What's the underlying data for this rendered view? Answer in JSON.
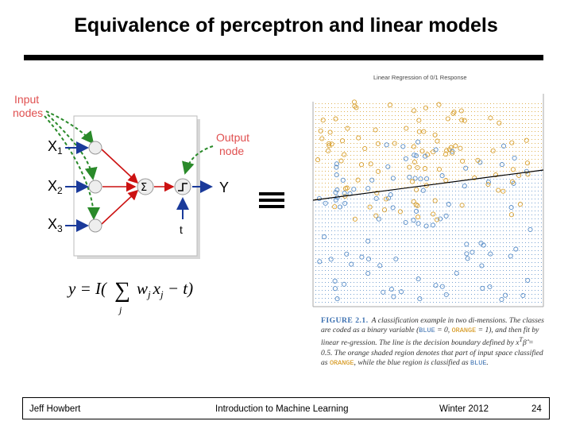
{
  "title": "Equivalence of perceptron and linear models",
  "diagram": {
    "input_label_1": "Input",
    "input_label_2": "nodes",
    "output_label_1": "Output",
    "output_label_2": "node",
    "x1": "X",
    "x1_sub": "1",
    "x2": "X",
    "x2_sub": "2",
    "x3": "X",
    "x3_sub": "3",
    "sum": "Σ",
    "y": "Y",
    "t": "t",
    "formula_lhs": "y = I(",
    "formula_sum": "∑",
    "formula_sub": "j",
    "formula_rhs_w": "w",
    "formula_rhs_x": "x",
    "formula_j": "j",
    "formula_end": " − t)"
  },
  "scatter": {
    "title": "Linear Regression of 0/1 Response",
    "orange": "#d8a030",
    "blue": "#5a8ec8"
  },
  "caption": {
    "fig": "FIGURE 2.1.",
    "t1": "A classification example in two di-mensions. The classes are coded as a binary variable (",
    "blue": "BLUE",
    "t2": " = 0, ",
    "orange": "ORANGE",
    "t3": " = 1), and then fit by linear re-gression. The line is the decision boundary defined by x",
    "t4": "β̂ = 0.5. The orange shaded region denotes that part of input space classified as ",
    "orange2": "ORANGE",
    "t5": ", while the blue region is classified as ",
    "blue2": "BLUE",
    "t6": "."
  },
  "footer": {
    "author": "Jeff Howbert",
    "course": "Introduction to Machine Learning",
    "term": "Winter 2012",
    "page": "24"
  }
}
